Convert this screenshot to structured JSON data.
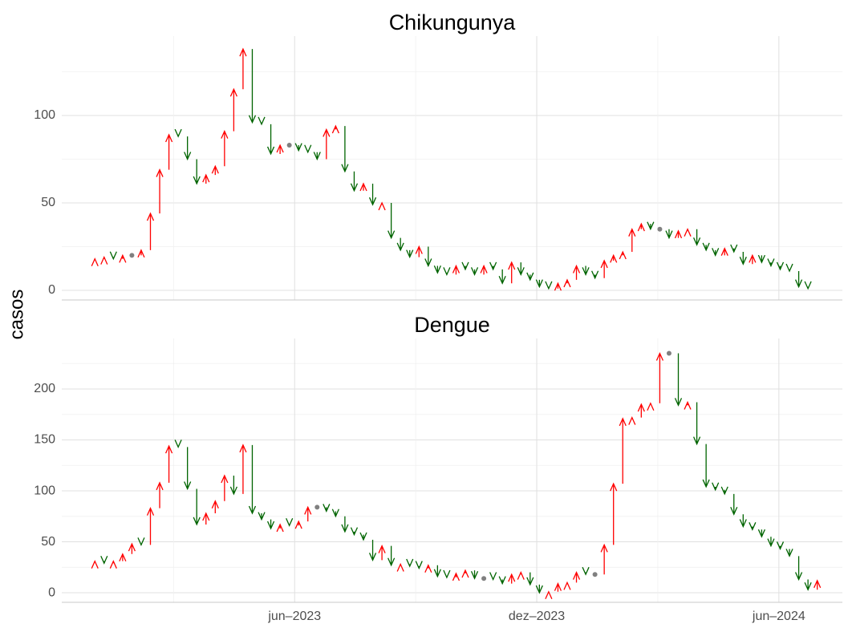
{
  "chart_data": [
    {
      "type": "arrow",
      "title": "Chikungunya",
      "y_label": "casos",
      "x_start": "2023-01-01",
      "x_step_days": 7,
      "values": [
        18,
        19,
        18,
        20,
        20,
        23,
        44,
        69,
        89,
        88,
        75,
        61,
        66,
        71,
        91,
        115,
        138,
        96,
        95,
        78,
        83,
        83,
        80,
        79,
        75,
        92,
        94,
        68,
        57,
        61,
        49,
        50,
        30,
        23,
        19,
        25,
        14,
        10,
        9,
        14,
        12,
        9,
        14,
        12,
        4,
        16,
        9,
        6,
        2,
        1,
        4,
        6,
        14,
        9,
        7,
        17,
        20,
        22,
        35,
        38,
        35,
        35,
        30,
        34,
        35,
        26,
        23,
        20,
        24,
        22,
        15,
        20,
        16,
        14,
        12,
        11,
        2,
        1,
        null
      ],
      "xlim": [
        "2022-12-07",
        "2024-07-19"
      ],
      "xticks": [
        "2023-06-01",
        "2023-12-01",
        "2024-06-01"
      ],
      "ylim": [
        -5.5,
        145.4
      ],
      "yticks": [
        0,
        50,
        100
      ],
      "up_color": "#ff0000",
      "down_color": "#006400",
      "flat_color": "#808080",
      "grid": true
    },
    {
      "type": "arrow",
      "title": "Dengue",
      "x_start": "2023-01-01",
      "x_step_days": 7,
      "values": [
        31,
        29,
        31,
        38,
        48,
        47,
        83,
        108,
        144,
        143,
        102,
        67,
        78,
        90,
        115,
        97,
        145,
        78,
        72,
        63,
        67,
        66,
        70,
        84,
        84,
        80,
        75,
        60,
        57,
        52,
        32,
        46,
        27,
        28,
        26,
        24,
        27,
        16,
        15,
        19,
        22,
        14,
        14,
        13,
        9,
        18,
        20,
        8,
        0,
        1,
        9,
        10,
        20,
        18,
        18,
        47,
        107,
        171,
        172,
        185,
        186,
        235,
        235,
        184,
        187,
        146,
        104,
        101,
        97,
        77,
        65,
        62,
        55,
        46,
        43,
        36,
        13,
        3,
        12
      ],
      "xlim": [
        "2022-12-07",
        "2024-07-19"
      ],
      "xticks": [
        {
          "value": "2023-06-01",
          "label": "jun–2023"
        },
        {
          "value": "2023-12-01",
          "label": "dez–2023"
        },
        {
          "value": "2024-06-01",
          "label": "jun–2024"
        }
      ],
      "ylim": [
        -9.4,
        249.6
      ],
      "yticks": [
        0,
        50,
        100,
        150,
        200
      ],
      "up_color": "#ff0000",
      "down_color": "#006400",
      "flat_color": "#808080",
      "grid": true
    }
  ]
}
